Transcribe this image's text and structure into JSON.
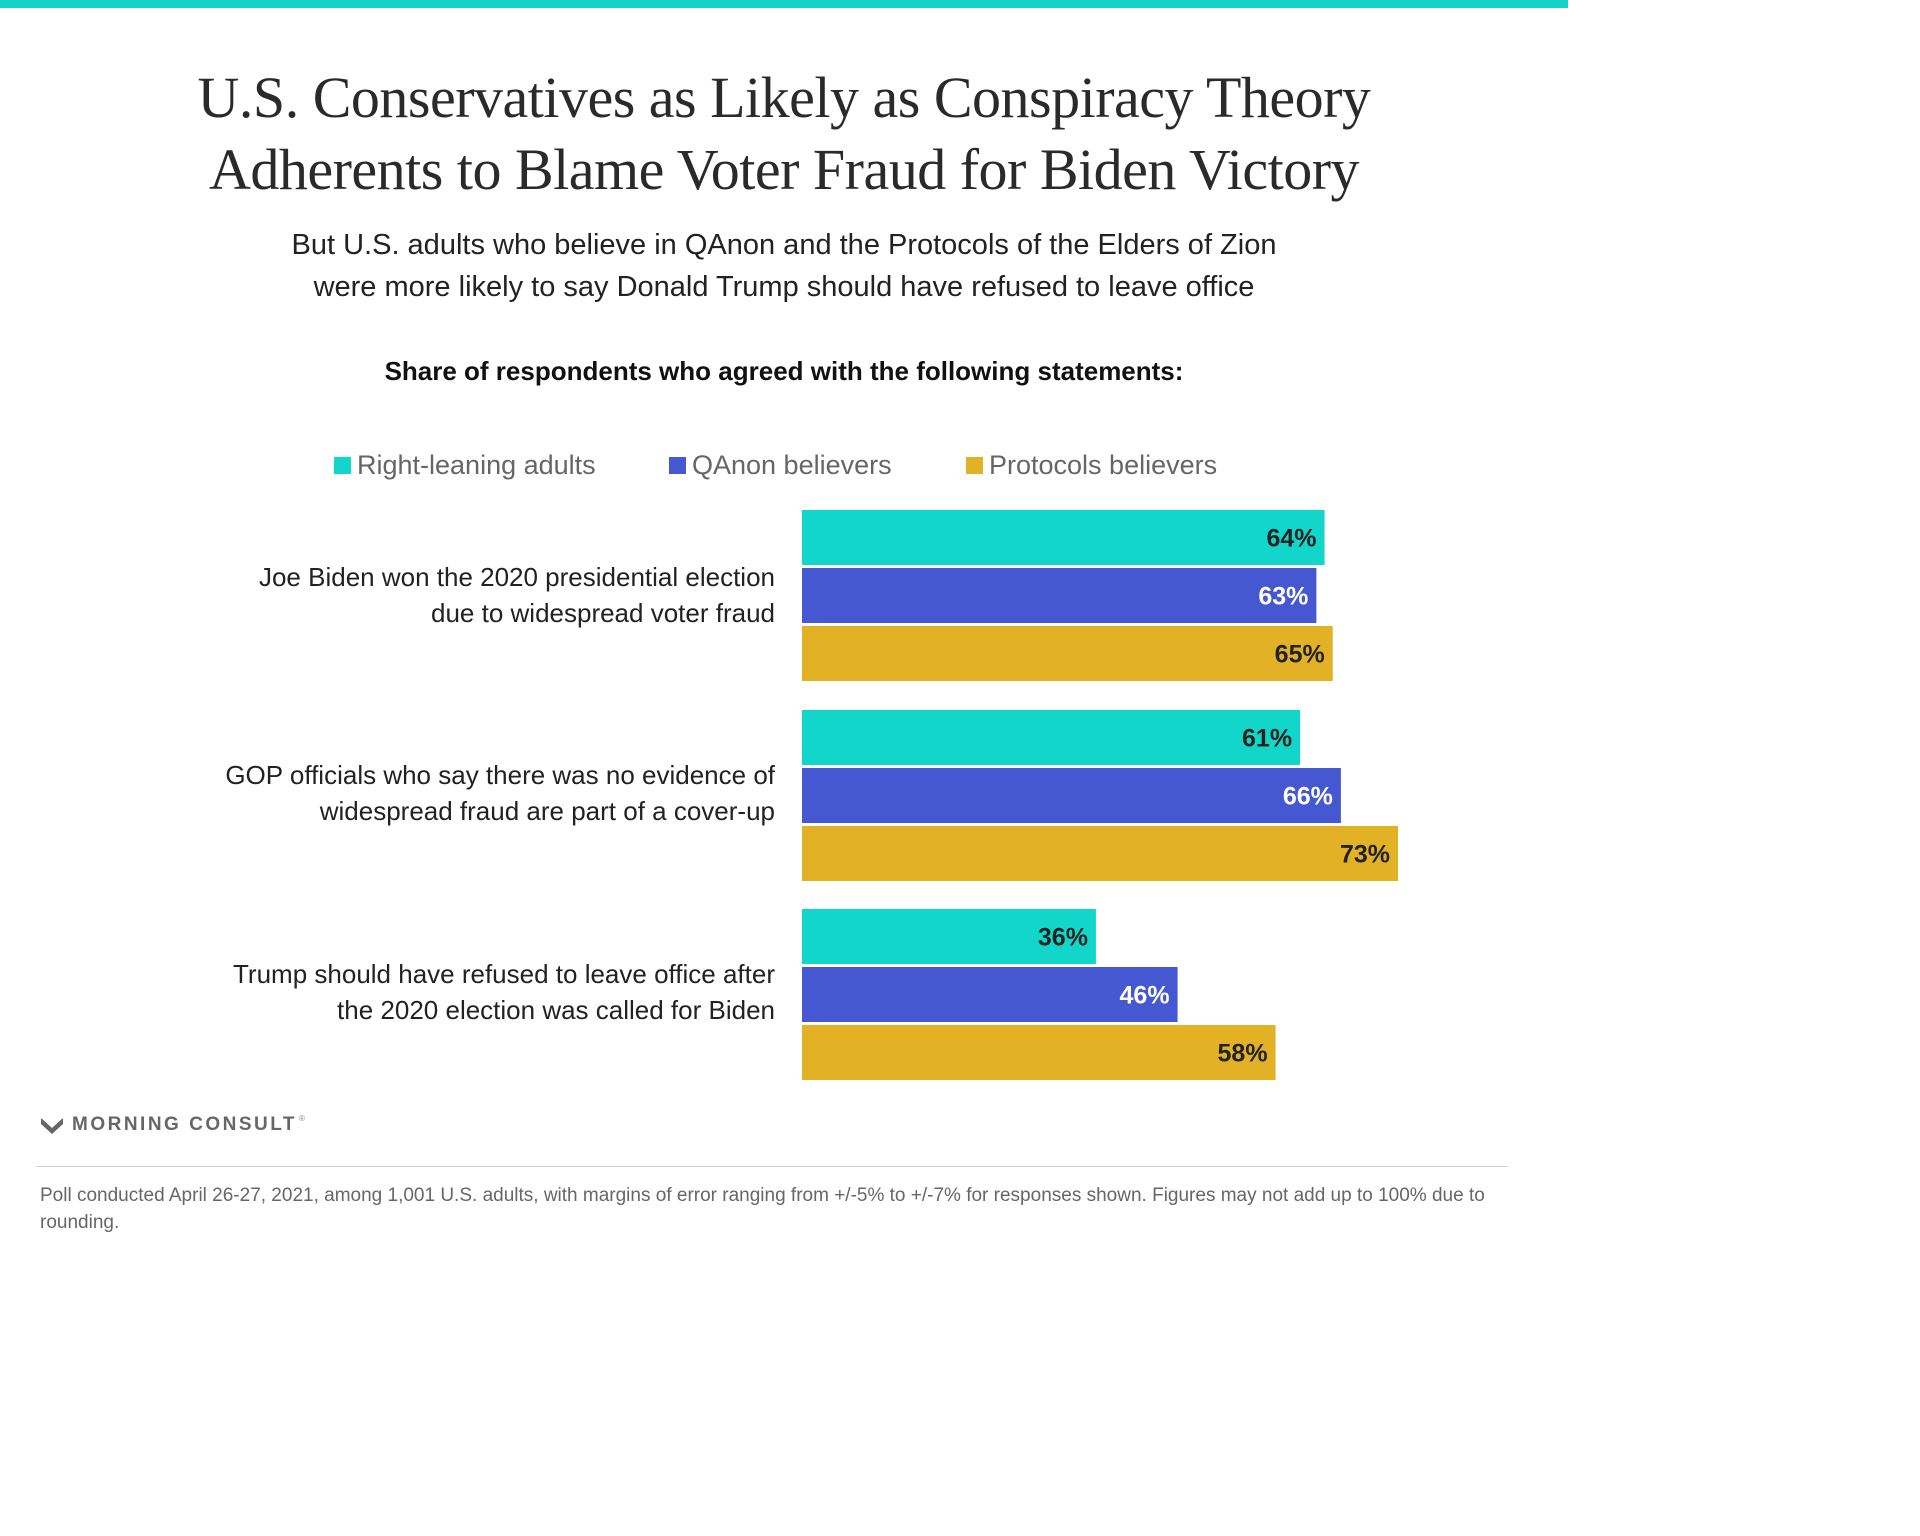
{
  "title_lines": [
    "U.S. Conservatives as Likely as Conspiracy Theory",
    "Adherents to Blame Voter Fraud for Biden Victory"
  ],
  "subtitle_lines": [
    "But U.S. adults who believe in QAnon and the Protocols of the Elders of Zion",
    "were more likely to say Donald Trump should have refused to leave office"
  ],
  "colors": {
    "top_bar": "#12d3c6",
    "right_leaning": "#12d6c9",
    "qanon": "#4557d1",
    "protocols": "#e2b125"
  },
  "chart_data": {
    "type": "bar",
    "orientation": "horizontal",
    "title": "Share of respondents who agreed with the following statements:",
    "xlabel": "",
    "ylabel": "",
    "xlim": [
      0,
      100
    ],
    "grid": false,
    "legend_position": "top",
    "value_suffix": "%",
    "categories": [
      [
        "Joe Biden won the 2020 presidential election",
        "due to widespread voter fraud"
      ],
      [
        "GOP officials who say there was no evidence of",
        "widespread fraud are part of a cover-up"
      ],
      [
        "Trump should have refused to leave office after",
        "the 2020 election was called for Biden"
      ]
    ],
    "series": [
      {
        "name": "Right-leaning adults",
        "color": "#12d6c9",
        "label_color": "#222222",
        "values": [
          64,
          61,
          36
        ]
      },
      {
        "name": "QAnon believers",
        "color": "#4557d1",
        "label_color": "#ffffff",
        "values": [
          63,
          66,
          46
        ]
      },
      {
        "name": "Protocols believers",
        "color": "#e2b125",
        "label_color": "#222222",
        "values": [
          65,
          73,
          58
        ]
      }
    ]
  },
  "brand": {
    "name": "MORNING CONSULT",
    "mark": "®"
  },
  "footnote": "Poll conducted April 26-27, 2021, among 1,001 U.S. adults, with margins of error ranging from +/-5% to +/-7% for responses shown. Figures may not add up to 100% due to rounding."
}
